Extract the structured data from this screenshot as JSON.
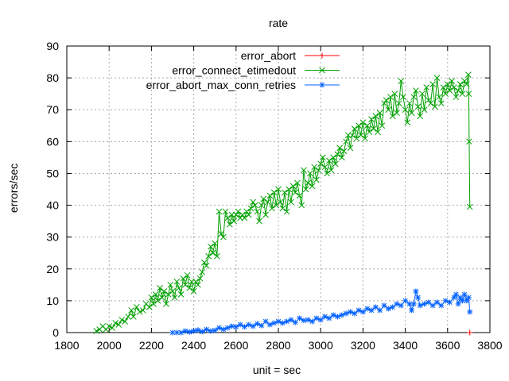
{
  "chart_data": {
    "type": "line",
    "title": "rate",
    "xlabel": "unit = sec",
    "ylabel": "errors/sec",
    "xlim": [
      1800,
      3800
    ],
    "ylim": [
      0,
      90
    ],
    "xticks": [
      1800,
      2000,
      2200,
      2400,
      2600,
      2800,
      3000,
      3200,
      3400,
      3600,
      3800
    ],
    "yticks": [
      0,
      10,
      20,
      30,
      40,
      50,
      60,
      70,
      80,
      90
    ],
    "grid": true,
    "legend_position": "top-right",
    "series": [
      {
        "name": "error_abort",
        "color": "#ff0000",
        "marker": "plus",
        "points": [
          [
            3705,
            0
          ]
        ]
      },
      {
        "name": "error_connect_etimedout",
        "color": "#00a000",
        "marker": "x",
        "points": [
          [
            1940,
            0.5
          ],
          [
            1955,
            1
          ],
          [
            1970,
            2
          ],
          [
            1985,
            1
          ],
          [
            2000,
            2
          ],
          [
            2015,
            1.5
          ],
          [
            2030,
            3
          ],
          [
            2045,
            2.5
          ],
          [
            2060,
            4
          ],
          [
            2075,
            3.5
          ],
          [
            2090,
            5
          ],
          [
            2105,
            7
          ],
          [
            2115,
            5
          ],
          [
            2130,
            8
          ],
          [
            2145,
            6.5
          ],
          [
            2160,
            7
          ],
          [
            2175,
            9
          ],
          [
            2190,
            8
          ],
          [
            2200,
            11
          ],
          [
            2210,
            9
          ],
          [
            2220,
            12
          ],
          [
            2230,
            10
          ],
          [
            2240,
            14
          ],
          [
            2250,
            11
          ],
          [
            2260,
            13
          ],
          [
            2270,
            9
          ],
          [
            2280,
            12
          ],
          [
            2290,
            15
          ],
          [
            2300,
            13
          ],
          [
            2310,
            11
          ],
          [
            2320,
            16
          ],
          [
            2330,
            14
          ],
          [
            2340,
            12
          ],
          [
            2350,
            17
          ],
          [
            2360,
            15
          ],
          [
            2370,
            18
          ],
          [
            2380,
            14
          ],
          [
            2390,
            16
          ],
          [
            2400,
            13
          ],
          [
            2410,
            16
          ],
          [
            2420,
            15
          ],
          [
            2430,
            17
          ],
          [
            2440,
            19
          ],
          [
            2450,
            22
          ],
          [
            2460,
            21
          ],
          [
            2470,
            24
          ],
          [
            2480,
            27
          ],
          [
            2490,
            25
          ],
          [
            2500,
            28
          ],
          [
            2510,
            24
          ],
          [
            2520,
            38
          ],
          [
            2530,
            31
          ],
          [
            2540,
            30
          ],
          [
            2550,
            38
          ],
          [
            2560,
            36
          ],
          [
            2570,
            34
          ],
          [
            2580,
            37
          ],
          [
            2590,
            35
          ],
          [
            2600,
            37
          ],
          [
            2610,
            38
          ],
          [
            2620,
            36
          ],
          [
            2630,
            37
          ],
          [
            2640,
            36
          ],
          [
            2650,
            38
          ],
          [
            2660,
            37
          ],
          [
            2670,
            39
          ],
          [
            2680,
            41
          ],
          [
            2690,
            40
          ],
          [
            2700,
            38
          ],
          [
            2710,
            35
          ],
          [
            2720,
            40
          ],
          [
            2730,
            42
          ],
          [
            2740,
            37
          ],
          [
            2750,
            41
          ],
          [
            2760,
            43
          ],
          [
            2770,
            39
          ],
          [
            2780,
            44
          ],
          [
            2790,
            40
          ],
          [
            2800,
            45
          ],
          [
            2810,
            41
          ],
          [
            2820,
            39
          ],
          [
            2830,
            44
          ],
          [
            2840,
            38
          ],
          [
            2850,
            45
          ],
          [
            2860,
            41
          ],
          [
            2870,
            46
          ],
          [
            2880,
            44
          ],
          [
            2890,
            47
          ],
          [
            2900,
            43
          ],
          [
            2910,
            40
          ],
          [
            2920,
            51
          ],
          [
            2930,
            45
          ],
          [
            2940,
            47
          ],
          [
            2950,
            50
          ],
          [
            2960,
            46
          ],
          [
            2970,
            52
          ],
          [
            2980,
            48
          ],
          [
            2990,
            51
          ],
          [
            3000,
            53
          ],
          [
            3010,
            55
          ],
          [
            3020,
            52
          ],
          [
            3030,
            50
          ],
          [
            3040,
            54
          ],
          [
            3050,
            51
          ],
          [
            3060,
            55
          ],
          [
            3070,
            53
          ],
          [
            3080,
            56
          ],
          [
            3090,
            58
          ],
          [
            3100,
            55
          ],
          [
            3110,
            57
          ],
          [
            3120,
            60
          ],
          [
            3130,
            62
          ],
          [
            3140,
            58
          ],
          [
            3150,
            62
          ],
          [
            3160,
            64
          ],
          [
            3170,
            61
          ],
          [
            3180,
            65
          ],
          [
            3190,
            62
          ],
          [
            3200,
            66
          ],
          [
            3210,
            61
          ],
          [
            3220,
            65
          ],
          [
            3230,
            63
          ],
          [
            3240,
            67
          ],
          [
            3250,
            64
          ],
          [
            3260,
            68
          ],
          [
            3270,
            63
          ],
          [
            3280,
            69
          ],
          [
            3290,
            65
          ],
          [
            3300,
            72
          ],
          [
            3310,
            73
          ],
          [
            3320,
            70
          ],
          [
            3330,
            74
          ],
          [
            3340,
            68
          ],
          [
            3350,
            75
          ],
          [
            3360,
            69
          ],
          [
            3370,
            72
          ],
          [
            3380,
            79
          ],
          [
            3390,
            74
          ],
          [
            3400,
            70
          ],
          [
            3410,
            66
          ],
          [
            3420,
            72
          ],
          [
            3430,
            69
          ],
          [
            3440,
            74
          ],
          [
            3450,
            76
          ],
          [
            3460,
            71
          ],
          [
            3470,
            68
          ],
          [
            3480,
            75
          ],
          [
            3490,
            70
          ],
          [
            3500,
            77
          ],
          [
            3510,
            73
          ],
          [
            3520,
            72
          ],
          [
            3530,
            78
          ],
          [
            3540,
            71
          ],
          [
            3550,
            80
          ],
          [
            3560,
            74
          ],
          [
            3570,
            72
          ],
          [
            3580,
            77
          ],
          [
            3590,
            75
          ],
          [
            3600,
            78
          ],
          [
            3610,
            76
          ],
          [
            3620,
            79
          ],
          [
            3630,
            77
          ],
          [
            3640,
            74
          ],
          [
            3650,
            76
          ],
          [
            3660,
            78
          ],
          [
            3670,
            75
          ],
          [
            3680,
            79
          ],
          [
            3690,
            78
          ],
          [
            3698,
            81
          ],
          [
            3700,
            75
          ],
          [
            3702,
            60
          ],
          [
            3705,
            39.5
          ]
        ]
      },
      {
        "name": "error_abort_max_conn_retries",
        "color": "#0060ff",
        "marker": "star",
        "points": [
          [
            2300,
            0
          ],
          [
            2320,
            0
          ],
          [
            2340,
            0
          ],
          [
            2360,
            0.5
          ],
          [
            2380,
            0.2
          ],
          [
            2400,
            0.5
          ],
          [
            2420,
            0.8
          ],
          [
            2440,
            0.3
          ],
          [
            2460,
            1
          ],
          [
            2480,
            0.5
          ],
          [
            2500,
            0.7
          ],
          [
            2520,
            1.5
          ],
          [
            2540,
            1
          ],
          [
            2560,
            1.5
          ],
          [
            2580,
            2
          ],
          [
            2600,
            1.8
          ],
          [
            2620,
            2.5
          ],
          [
            2640,
            1.8
          ],
          [
            2660,
            2.5
          ],
          [
            2680,
            2
          ],
          [
            2700,
            2.8
          ],
          [
            2720,
            2.2
          ],
          [
            2740,
            3.5
          ],
          [
            2760,
            2.5
          ],
          [
            2780,
            3
          ],
          [
            2800,
            3.5
          ],
          [
            2820,
            3
          ],
          [
            2840,
            3.5
          ],
          [
            2860,
            4
          ],
          [
            2880,
            3.2
          ],
          [
            2900,
            4.5
          ],
          [
            2920,
            3.8
          ],
          [
            2940,
            4
          ],
          [
            2960,
            3.5
          ],
          [
            2980,
            4.5
          ],
          [
            3000,
            4
          ],
          [
            3020,
            5
          ],
          [
            3040,
            4.5
          ],
          [
            3060,
            5.5
          ],
          [
            3080,
            5
          ],
          [
            3100,
            5.5
          ],
          [
            3120,
            6
          ],
          [
            3140,
            6.5
          ],
          [
            3160,
            6
          ],
          [
            3180,
            7
          ],
          [
            3200,
            6.5
          ],
          [
            3220,
            7.5
          ],
          [
            3240,
            7
          ],
          [
            3260,
            8
          ],
          [
            3280,
            7
          ],
          [
            3300,
            8.5
          ],
          [
            3320,
            7.5
          ],
          [
            3340,
            8
          ],
          [
            3360,
            9
          ],
          [
            3380,
            8.5
          ],
          [
            3400,
            10
          ],
          [
            3420,
            9
          ],
          [
            3430,
            7
          ],
          [
            3440,
            9
          ],
          [
            3450,
            13
          ],
          [
            3460,
            11
          ],
          [
            3470,
            8.5
          ],
          [
            3490,
            9
          ],
          [
            3510,
            9.5
          ],
          [
            3530,
            8.5
          ],
          [
            3550,
            9.5
          ],
          [
            3570,
            8.5
          ],
          [
            3590,
            10
          ],
          [
            3610,
            9.5
          ],
          [
            3630,
            11
          ],
          [
            3640,
            12
          ],
          [
            3650,
            9
          ],
          [
            3660,
            11
          ],
          [
            3670,
            10
          ],
          [
            3680,
            12
          ],
          [
            3690,
            10
          ],
          [
            3700,
            11
          ],
          [
            3705,
            6.5
          ]
        ]
      }
    ]
  }
}
